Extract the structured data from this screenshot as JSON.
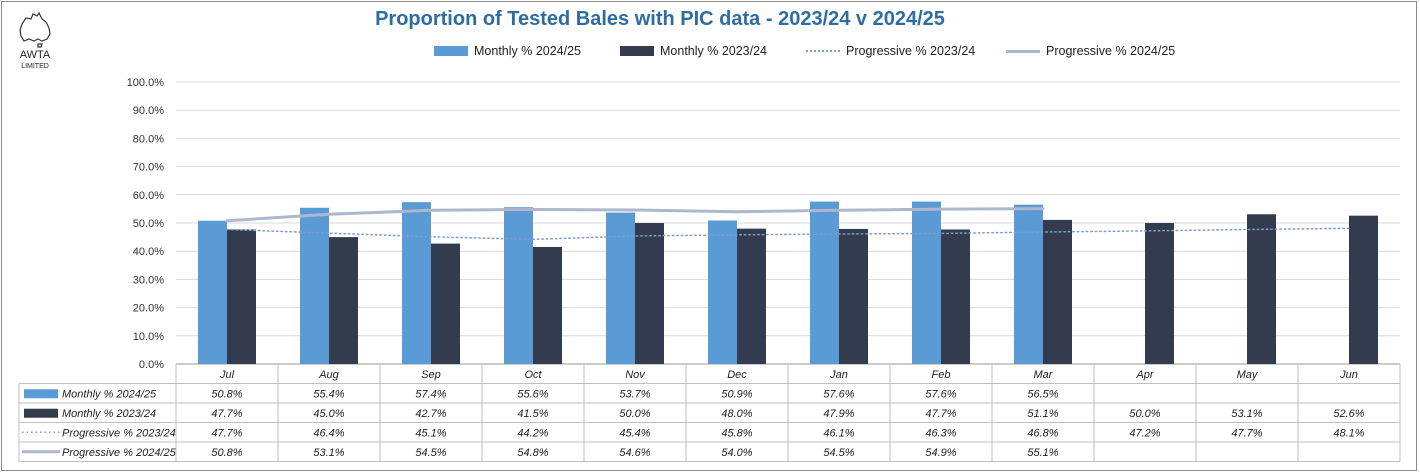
{
  "logo": {
    "line1": "AWTA",
    "line2": "LIMITED"
  },
  "chart_data": {
    "type": "bar",
    "title": "Proportion of Tested Bales with PIC data - 2023/24 v 2024/25",
    "categories": [
      "Jul",
      "Aug",
      "Sep",
      "Oct",
      "Nov",
      "Dec",
      "Jan",
      "Feb",
      "Mar",
      "Apr",
      "May",
      "Jun"
    ],
    "y_ticks": [
      "0.0%",
      "10.0%",
      "20.0%",
      "30.0%",
      "40.0%",
      "50.0%",
      "60.0%",
      "70.0%",
      "80.0%",
      "90.0%",
      "100.0%"
    ],
    "ylim": [
      0,
      100
    ],
    "grid": true,
    "legend_position": "top",
    "series": [
      {
        "name": "Monthly % 2024/25",
        "kind": "bar",
        "color": "#5b9bd5",
        "values": [
          50.8,
          55.4,
          57.4,
          55.6,
          53.7,
          50.9,
          57.6,
          57.6,
          56.5,
          null,
          null,
          null
        ],
        "labels": [
          "50.8%",
          "55.4%",
          "57.4%",
          "55.6%",
          "53.7%",
          "50.9%",
          "57.6%",
          "57.6%",
          "56.5%",
          "",
          "",
          ""
        ]
      },
      {
        "name": "Monthly % 2023/24",
        "kind": "bar",
        "color": "#323c4e",
        "values": [
          47.7,
          45.0,
          42.7,
          41.5,
          50.0,
          48.0,
          47.9,
          47.7,
          51.1,
          50.0,
          53.1,
          52.6
        ],
        "labels": [
          "47.7%",
          "45.0%",
          "42.7%",
          "41.5%",
          "50.0%",
          "48.0%",
          "47.9%",
          "47.7%",
          "51.1%",
          "50.0%",
          "53.1%",
          "52.6%"
        ]
      },
      {
        "name": "Progressive % 2023/24",
        "kind": "line-dotted",
        "color": "#7d9ccc",
        "values": [
          47.7,
          46.4,
          45.1,
          44.2,
          45.4,
          45.8,
          46.1,
          46.3,
          46.8,
          47.2,
          47.7,
          48.1
        ],
        "labels": [
          "47.7%",
          "46.4%",
          "45.1%",
          "44.2%",
          "45.4%",
          "45.8%",
          "46.1%",
          "46.3%",
          "46.8%",
          "47.2%",
          "47.7%",
          "48.1%"
        ]
      },
      {
        "name": "Progressive % 2024/25",
        "kind": "line-solid",
        "color": "#aeb8cc",
        "values": [
          50.8,
          53.1,
          54.5,
          54.8,
          54.6,
          54.0,
          54.5,
          54.9,
          55.1,
          null,
          null,
          null
        ],
        "labels": [
          "50.8%",
          "53.1%",
          "54.5%",
          "54.8%",
          "54.6%",
          "54.0%",
          "54.5%",
          "54.9%",
          "55.1%",
          "",
          "",
          ""
        ]
      }
    ]
  }
}
